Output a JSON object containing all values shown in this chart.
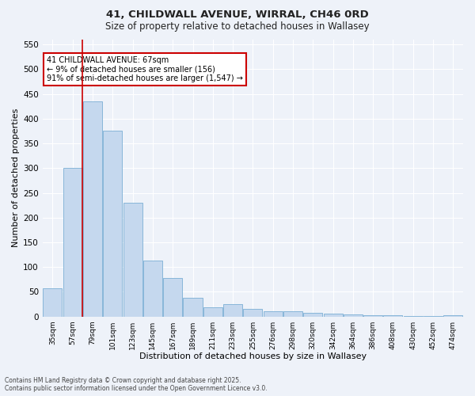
{
  "title_line1": "41, CHILDWALL AVENUE, WIRRAL, CH46 0RD",
  "title_line2": "Size of property relative to detached houses in Wallasey",
  "xlabel": "Distribution of detached houses by size in Wallasey",
  "ylabel": "Number of detached properties",
  "bar_color": "#c5d8ee",
  "bar_edge_color": "#7bafd4",
  "bar_categories": [
    "35sqm",
    "57sqm",
    "79sqm",
    "101sqm",
    "123sqm",
    "145sqm",
    "167sqm",
    "189sqm",
    "211sqm",
    "233sqm",
    "255sqm",
    "276sqm",
    "298sqm",
    "320sqm",
    "342sqm",
    "364sqm",
    "386sqm",
    "408sqm",
    "430sqm",
    "452sqm",
    "474sqm"
  ],
  "bar_values": [
    57,
    300,
    435,
    375,
    230,
    113,
    78,
    38,
    19,
    25,
    15,
    10,
    10,
    8,
    5,
    4,
    2,
    2,
    1,
    1,
    3
  ],
  "vline_x": 1.5,
  "vline_color": "#cc0000",
  "annotation_text": "41 CHILDWALL AVENUE: 67sqm\n← 9% of detached houses are smaller (156)\n91% of semi-detached houses are larger (1,547) →",
  "annotation_box_color": "#ffffff",
  "annotation_box_edge_color": "#cc0000",
  "ylim": [
    0,
    560
  ],
  "yticks": [
    0,
    50,
    100,
    150,
    200,
    250,
    300,
    350,
    400,
    450,
    500,
    550
  ],
  "footer_line1": "Contains HM Land Registry data © Crown copyright and database right 2025.",
  "footer_line2": "Contains public sector information licensed under the Open Government Licence v3.0.",
  "background_color": "#eef2f9",
  "grid_color": "#ffffff",
  "fig_width": 6.0,
  "fig_height": 5.0,
  "dpi": 100
}
